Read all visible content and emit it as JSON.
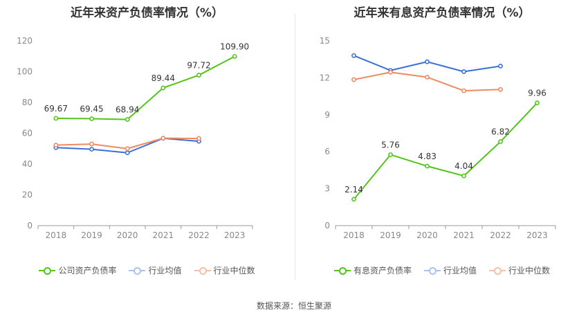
{
  "source_text": "数据来源：恒生聚源",
  "chart_data": [
    {
      "type": "line",
      "title": "近年来资产负债率情况（%）",
      "x": [
        "2018",
        "2019",
        "2020",
        "2021",
        "2022",
        "2023"
      ],
      "ylim": [
        0,
        120
      ],
      "yticks": [
        0,
        20,
        40,
        60,
        80,
        100,
        120
      ],
      "grid": false,
      "legend_position": "bottom",
      "series": [
        {
          "name": "公司资产负债率",
          "color": "#52c41a",
          "values": [
            69.67,
            69.45,
            68.94,
            89.44,
            97.72,
            109.9
          ],
          "labels": [
            "69.67",
            "69.45",
            "68.94",
            "89.44",
            "97.72",
            "109.90"
          ]
        },
        {
          "name": "行业均值",
          "color": "#3a6fd8",
          "values": [
            50.7,
            49.6,
            47.3,
            56.7,
            54.8,
            null
          ]
        },
        {
          "name": "行业中位数",
          "color": "#ee8a62",
          "values": [
            52.3,
            53.0,
            50.0,
            56.8,
            56.6,
            null
          ]
        }
      ]
    },
    {
      "type": "line",
      "title": "近年来有息资产负债率情况（%）",
      "x": [
        "2018",
        "2019",
        "2020",
        "2021",
        "2022",
        "2023"
      ],
      "ylim": [
        0,
        15
      ],
      "yticks": [
        0,
        3,
        6,
        9,
        12,
        15
      ],
      "grid": false,
      "legend_position": "bottom",
      "series": [
        {
          "name": "有息资产负债率",
          "color": "#52c41a",
          "values": [
            2.14,
            5.76,
            4.83,
            4.04,
            6.82,
            9.96
          ],
          "labels": [
            "2.14",
            "5.76",
            "4.83",
            "4.04",
            "6.82",
            "9.96"
          ]
        },
        {
          "name": "行业均值",
          "color": "#3a6fd8",
          "values": [
            13.8,
            12.6,
            13.3,
            12.5,
            12.95,
            null
          ]
        },
        {
          "name": "行业中位数",
          "color": "#ee8a62",
          "values": [
            11.85,
            12.45,
            12.05,
            10.95,
            11.05,
            null
          ]
        }
      ]
    }
  ]
}
